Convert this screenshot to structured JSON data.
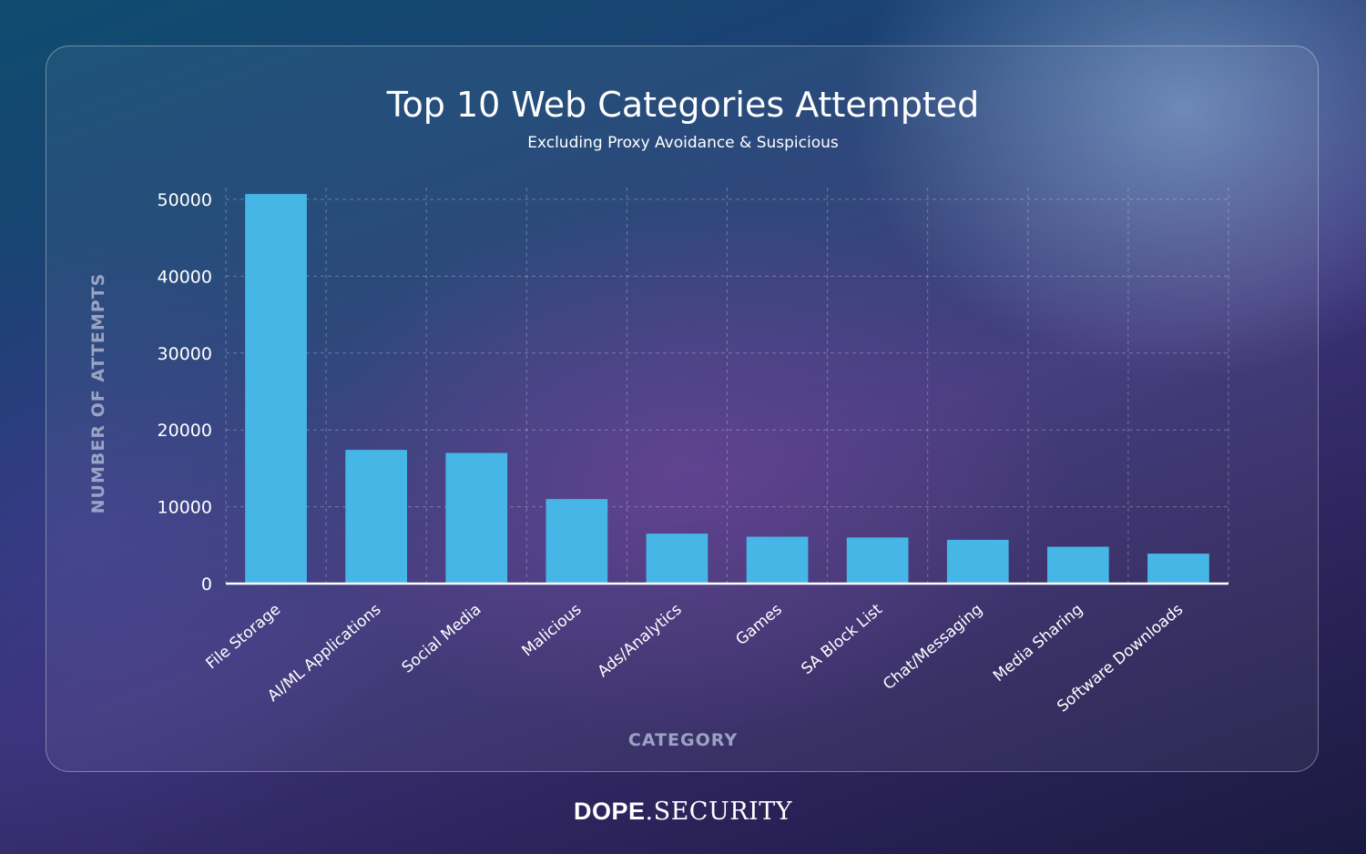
{
  "chart_data": {
    "type": "bar",
    "title": "Top 10 Web Categories Attempted",
    "subtitle": "Excluding Proxy Avoidance & Suspicious",
    "xlabel": "CATEGORY",
    "ylabel": "NUMBER OF ATTEMPTS",
    "categories": [
      "File Storage",
      "AI/ML Applications",
      "Social Media",
      "Malicious",
      "Ads/Analytics",
      "Games",
      "SA Block List",
      "Chat/Messaging",
      "Media Sharing",
      "Software Downloads"
    ],
    "values": [
      50700,
      17400,
      17000,
      11000,
      6500,
      6100,
      6000,
      5700,
      4800,
      3900
    ],
    "yticks": [
      "0",
      "10000",
      "20000",
      "30000",
      "40000",
      "50000"
    ],
    "ylim": [
      0,
      50000
    ],
    "grid": true,
    "bar_color": "#46b6e6"
  },
  "brand": {
    "bold": "DOPE",
    "light": ".SECURITY"
  }
}
